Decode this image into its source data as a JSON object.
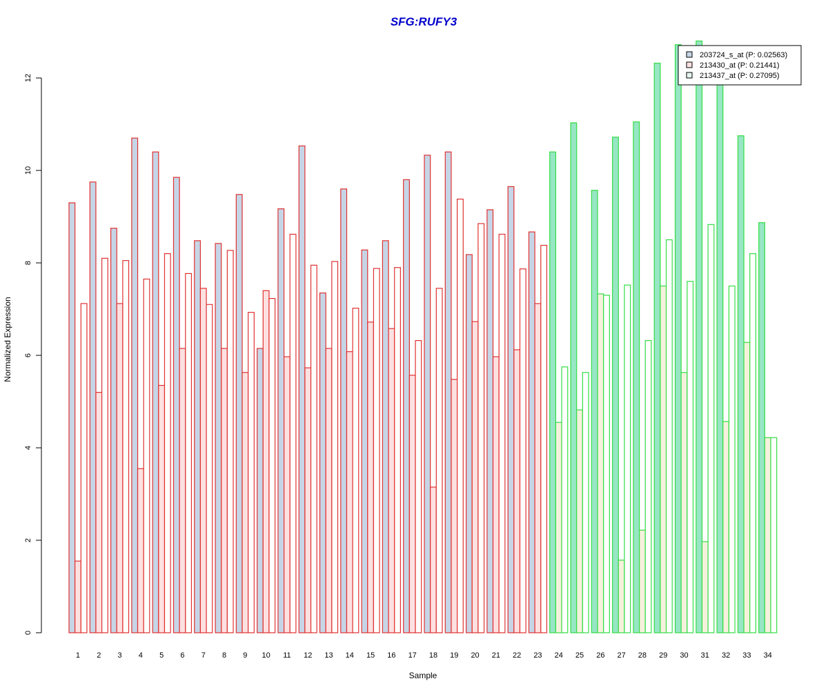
{
  "chart_data": {
    "type": "bar",
    "title": "SFG:RUFY3",
    "xlabel": "Sample",
    "ylabel": "Normalized Expression",
    "ylim": [
      0,
      12
    ],
    "yticks": [
      0,
      2,
      4,
      6,
      8,
      10,
      12
    ],
    "categories": [
      "1",
      "2",
      "3",
      "4",
      "5",
      "6",
      "7",
      "8",
      "9",
      "10",
      "11",
      "12",
      "13",
      "14",
      "15",
      "16",
      "17",
      "18",
      "19",
      "20",
      "21",
      "22",
      "23",
      "24",
      "25",
      "26",
      "27",
      "28",
      "29",
      "30",
      "31",
      "32",
      "33",
      "34"
    ],
    "group_split_after": 23,
    "group_colors": {
      "group1": {
        "border": "#e03030",
        "series_fills": [
          "#c6d5e6",
          "#fde0e0",
          "#ffffff"
        ]
      },
      "group2": {
        "border": "#33dd44",
        "series_fills": [
          "#97e6c4",
          "#f5f1dc",
          "#ffffff"
        ]
      }
    },
    "legend": {
      "position": "top-right",
      "entries": [
        {
          "label": "203724_s_at (P: 0.02563)",
          "swatch": "#c6d5e6"
        },
        {
          "label": "213430_at (P: 0.21441)",
          "swatch": "#fde0e0"
        },
        {
          "label": "213437_at (P: 0.27095)",
          "swatch": "#e6f6f2"
        }
      ]
    },
    "series": [
      {
        "name": "203724_s_at (P: 0.02563)",
        "values": [
          9.3,
          9.75,
          8.75,
          10.7,
          10.4,
          9.85,
          8.48,
          8.42,
          9.48,
          6.15,
          9.17,
          10.53,
          7.35,
          9.6,
          8.28,
          8.48,
          9.8,
          10.33,
          10.4,
          8.18,
          9.15,
          9.65,
          8.67,
          10.4,
          11.03,
          9.57,
          10.72,
          11.05,
          12.32,
          12.72,
          12.8,
          12.37,
          10.75,
          8.87
        ]
      },
      {
        "name": "213430_at (P: 0.21441)",
        "values": [
          1.55,
          5.2,
          7.12,
          3.55,
          5.35,
          6.15,
          7.45,
          6.15,
          5.63,
          7.4,
          5.97,
          5.73,
          6.15,
          6.08,
          6.72,
          6.58,
          5.57,
          3.15,
          5.48,
          6.73,
          5.97,
          6.12,
          7.12,
          4.55,
          4.82,
          7.33,
          1.57,
          2.22,
          7.5,
          5.63,
          1.97,
          4.57,
          6.28,
          4.22
        ]
      },
      {
        "name": "213437_at (P: 0.27095)",
        "values": [
          7.12,
          8.1,
          8.05,
          7.65,
          8.2,
          7.77,
          7.1,
          8.27,
          6.93,
          7.23,
          8.62,
          7.95,
          8.03,
          7.02,
          7.88,
          7.9,
          6.32,
          7.45,
          9.38,
          8.85,
          8.62,
          7.87,
          8.38,
          5.75,
          5.63,
          7.3,
          7.52,
          6.32,
          8.5,
          7.6,
          8.83,
          7.5,
          8.2,
          4.22
        ]
      }
    ]
  }
}
